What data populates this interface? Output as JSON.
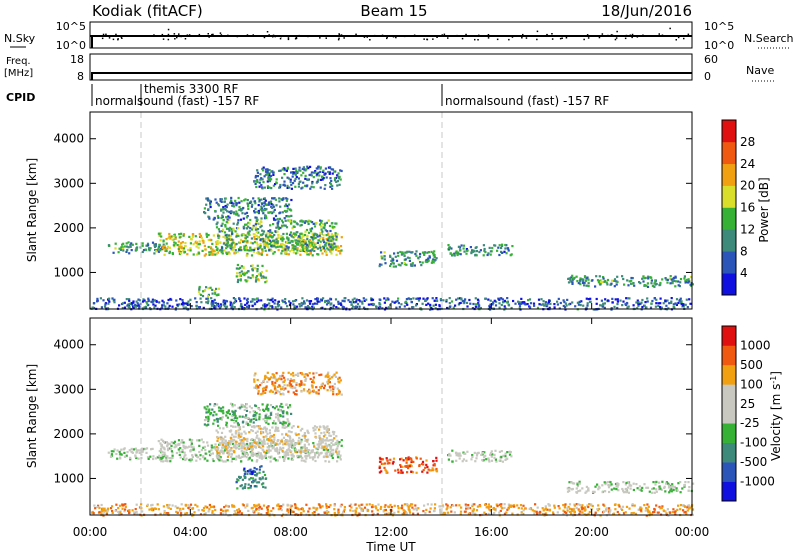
{
  "header": {
    "station": "Kodiak (fitACF)",
    "beam": "Beam 15",
    "date": "18/Jun/2016"
  },
  "colors": {
    "power_scale": [
      "#1010e0",
      "#2b55b8",
      "#3e8a7a",
      "#36b136",
      "#d8de2a",
      "#f0a010",
      "#f05a10",
      "#e01010"
    ],
    "velocity_scale": [
      "#e01010",
      "#f05a10",
      "#f0a010",
      "#c8c8c0",
      "#c8c8c0",
      "#36b136",
      "#3e8a7a",
      "#2b55b8",
      "#1010e0"
    ],
    "grey_dash": "#c8c8c8"
  },
  "nsky_panel": {
    "left_label": "N.Sky",
    "right_label": "N.Search",
    "left_ticks": [
      "10^5",
      "10^0"
    ],
    "right_ticks": [
      "10^5",
      "10^0"
    ]
  },
  "freq_panel": {
    "left_label_top": "Freq.",
    "left_label_unit": "[MHz]",
    "left_ticks": [
      "18",
      "8"
    ],
    "right_label": "Nave",
    "right_ticks": [
      "60",
      "0"
    ]
  },
  "cpid": {
    "label": "CPID",
    "segments": [
      {
        "start_hour": 0,
        "text": "normalsound (fast) -157 RF"
      },
      {
        "start_hour": 2,
        "text": "themis 3300 RF"
      },
      {
        "start_hour": 14,
        "text": "normalsound (fast) -157 RF"
      }
    ]
  },
  "chart_data": [
    {
      "type": "heatmap",
      "quantity": "power",
      "ylabel": "Slant Range [km]",
      "xlim": [
        0,
        24
      ],
      "ylim": [
        180,
        4600
      ],
      "yticks": [
        1000,
        2000,
        3000,
        4000
      ],
      "colorbar": {
        "label": "Power [dB]",
        "range": [
          0,
          32
        ],
        "ticks": [
          4,
          8,
          12,
          16,
          20,
          24,
          28
        ]
      },
      "scatter_regions": [
        {
          "t": [
            0.7,
            3.0
          ],
          "r": [
            1450,
            1700
          ],
          "v": 10
        },
        {
          "t": [
            2.7,
            10.0
          ],
          "r": [
            1400,
            1900
          ],
          "v": 18
        },
        {
          "t": [
            5.0,
            9.8
          ],
          "r": [
            1500,
            2200
          ],
          "v": 12
        },
        {
          "t": [
            6.5,
            10.0
          ],
          "r": [
            2900,
            3400
          ],
          "v": 7
        },
        {
          "t": [
            4.5,
            8.0
          ],
          "r": [
            2200,
            2700
          ],
          "v": 8
        },
        {
          "t": [
            5.8,
            7.0
          ],
          "r": [
            800,
            1200
          ],
          "v": 14
        },
        {
          "t": [
            4.3,
            5.2
          ],
          "r": [
            480,
            700
          ],
          "v": 13
        },
        {
          "t": [
            11.5,
            13.8
          ],
          "r": [
            1150,
            1500
          ],
          "v": 10
        },
        {
          "t": [
            14.2,
            16.8
          ],
          "r": [
            1400,
            1650
          ],
          "v": 9
        },
        {
          "t": [
            19.0,
            24.0
          ],
          "r": [
            700,
            950
          ],
          "v": 10
        },
        {
          "t": [
            0.0,
            24.0
          ],
          "r": [
            190,
            450
          ],
          "v": 5
        }
      ]
    },
    {
      "type": "heatmap",
      "quantity": "velocity",
      "xlabel": "Time UT",
      "ylabel": "Slant Range [km]",
      "xlim": [
        0,
        24
      ],
      "ylim": [
        180,
        4600
      ],
      "yticks": [
        1000,
        2000,
        3000,
        4000
      ],
      "xticks": [
        "00:00",
        "04:00",
        "08:00",
        "12:00",
        "16:00",
        "20:00",
        "00:00"
      ],
      "colorbar": {
        "label": "Velocity [m s",
        "label_sup": "-1",
        "label_end": "]",
        "ticks": [
          "1000",
          "500",
          "100",
          "25",
          "-25",
          "-100",
          "-500",
          "-1000"
        ]
      },
      "scatter_regions": [
        {
          "t": [
            0.7,
            3.0
          ],
          "r": [
            1450,
            1700
          ],
          "v": 4
        },
        {
          "t": [
            2.7,
            10.0
          ],
          "r": [
            1400,
            1900
          ],
          "v": 4
        },
        {
          "t": [
            5.0,
            9.8
          ],
          "r": [
            1500,
            2200
          ],
          "v": 3
        },
        {
          "t": [
            6.5,
            10.0
          ],
          "r": [
            2900,
            3400
          ],
          "v": 2
        },
        {
          "t": [
            4.5,
            8.0
          ],
          "r": [
            2200,
            2700
          ],
          "v": 5
        },
        {
          "t": [
            5.8,
            7.0
          ],
          "r": [
            800,
            1200
          ],
          "v": 6
        },
        {
          "t": [
            6.0,
            6.8
          ],
          "r": [
            1100,
            1300
          ],
          "v": 7
        },
        {
          "t": [
            11.5,
            13.8
          ],
          "r": [
            1150,
            1500
          ],
          "v": 1
        },
        {
          "t": [
            14.2,
            16.8
          ],
          "r": [
            1400,
            1650
          ],
          "v": 4
        },
        {
          "t": [
            19.0,
            24.0
          ],
          "r": [
            700,
            950
          ],
          "v": 4
        },
        {
          "t": [
            0.0,
            24.0
          ],
          "r": [
            190,
            450
          ],
          "v": 2
        }
      ]
    }
  ]
}
